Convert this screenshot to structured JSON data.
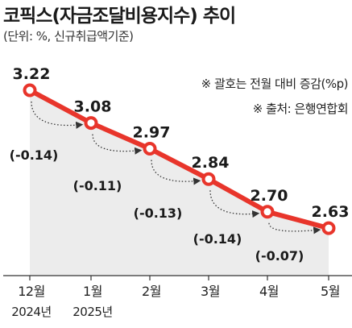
{
  "chart_data": {
    "type": "line",
    "title": "코픽스(자금조달비용지수) 추이",
    "subtitle": "(단위: %, 신규취급액기준)",
    "categories": [
      {
        "month": "12월",
        "year": "2024년"
      },
      {
        "month": "1월",
        "year": "2025년"
      },
      {
        "month": "2월",
        "year": ""
      },
      {
        "month": "3월",
        "year": ""
      },
      {
        "month": "4월",
        "year": ""
      },
      {
        "month": "5월",
        "year": ""
      }
    ],
    "values": [
      3.22,
      3.08,
      2.97,
      2.84,
      2.7,
      2.63
    ],
    "value_labels": [
      "3.22",
      "3.08",
      "2.97",
      "2.84",
      "2.70",
      "2.63"
    ],
    "changes": [
      "(-0.14)",
      "(-0.11)",
      "(-0.13)",
      "(-0.14)",
      "(-0.07)"
    ],
    "notes": [
      "※ 괄호는 전월 대비 증감(%p)",
      "※ 출처: 은행연합회"
    ],
    "colors": {
      "line": "#e8352b",
      "area": "#ececec",
      "marker_fill": "#ffffff",
      "text": "#1a1a1a"
    }
  }
}
